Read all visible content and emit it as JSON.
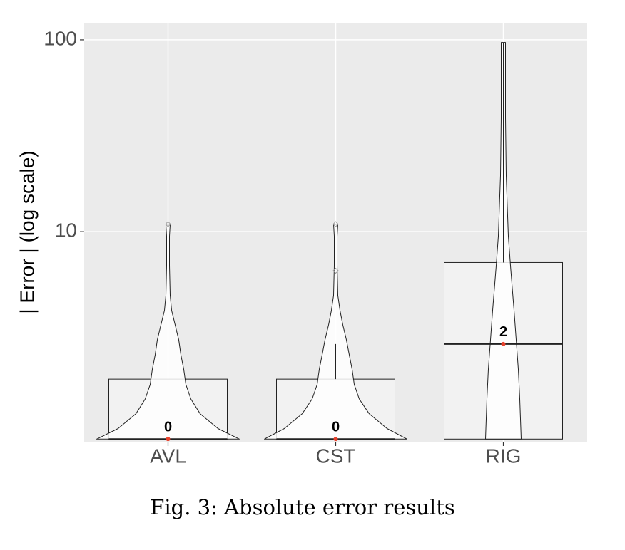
{
  "chart_data": {
    "type": "violin_box",
    "y_label": "| Error |  (log scale)",
    "caption": "Fig. 3: Absolute error results",
    "y_scale": "log10(y+1)",
    "ylim": [
      -0.03,
      122
    ],
    "yticks": [
      10,
      100
    ],
    "grid": true,
    "categories": [
      "AVL",
      "CST",
      "RIG"
    ],
    "box_color": "#f2f2f2",
    "median_color": "#e8412c",
    "boxes": [
      {
        "q1": 0,
        "median": 0,
        "q3": 1,
        "whisker_low": 0,
        "whisker_high": 2,
        "outliers": [
          11
        ],
        "median_label": "0"
      },
      {
        "q1": 0,
        "median": 0,
        "q3": 1,
        "whisker_low": 0,
        "whisker_high": 2,
        "outliers": [
          6,
          11
        ],
        "median_label": "0"
      },
      {
        "q1": 0,
        "median": 2,
        "q3": 6.7,
        "whisker_low": 0,
        "whisker_high": 97,
        "outliers": [],
        "median_label": "2"
      }
    ],
    "violins": [
      {
        "y": [
          0,
          0.13,
          0.34,
          0.59,
          0.88,
          1.24,
          1.65,
          2.15,
          2.74,
          3.43,
          4.26,
          6.41,
          9.44,
          11
        ],
        "density": [
          1,
          0.7,
          0.45,
          0.32,
          0.25,
          0.22,
          0.18,
          0.15,
          0.1,
          0.05,
          0.03,
          0.02,
          0.02,
          0.03
        ]
      },
      {
        "y": [
          0,
          0.13,
          0.34,
          0.59,
          0.88,
          1.24,
          1.65,
          2.15,
          2.74,
          3.43,
          4.26,
          6.41,
          9.44,
          11
        ],
        "density": [
          1,
          0.72,
          0.47,
          0.33,
          0.26,
          0.23,
          0.19,
          0.15,
          0.1,
          0.06,
          0.03,
          0.02,
          0.02,
          0.03
        ]
      },
      {
        "y": [
          0,
          0.59,
          1.24,
          2.15,
          3.43,
          6.41,
          9.44,
          20,
          40,
          97
        ],
        "density": [
          0.25,
          0.23,
          0.21,
          0.18,
          0.15,
          0.1,
          0.07,
          0.04,
          0.03,
          0.03
        ]
      }
    ]
  }
}
